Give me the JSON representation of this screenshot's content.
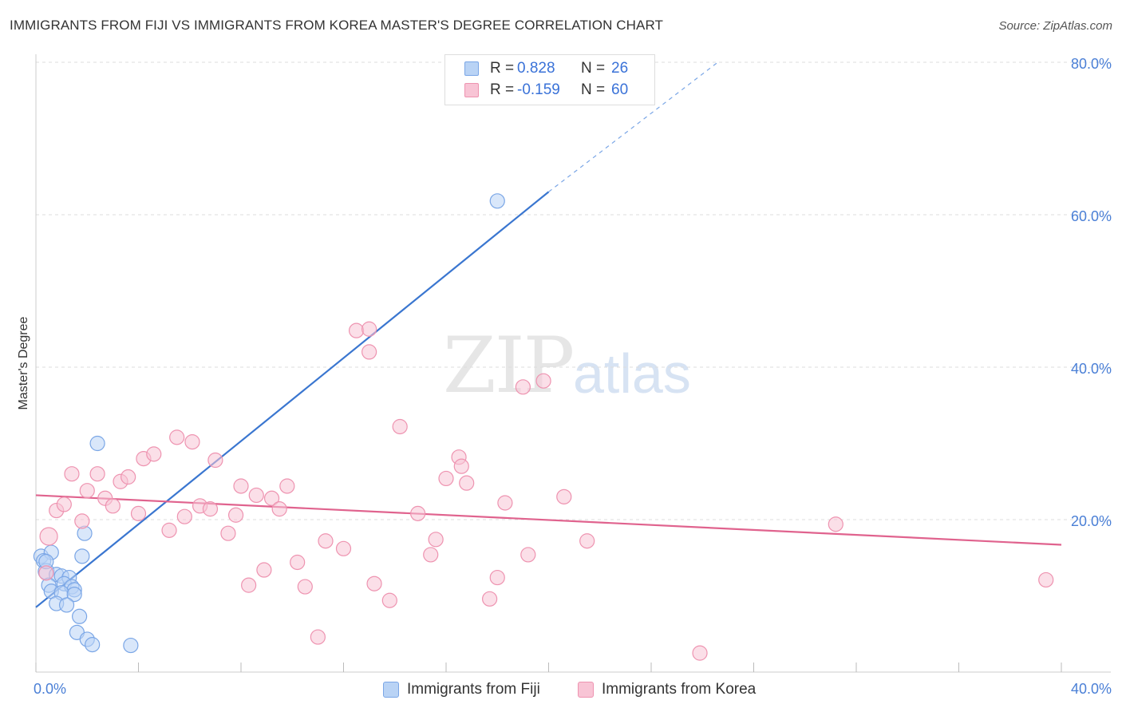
{
  "header": {
    "title": "IMMIGRANTS FROM FIJI VS IMMIGRANTS FROM KOREA MASTER'S DEGREE CORRELATION CHART",
    "source": "Source: ZipAtlas.com"
  },
  "watermark": {
    "zip": "ZIP",
    "atlas": "atlas"
  },
  "legend": {
    "r_label": "R =",
    "n_label": "N =",
    "rows": [
      {
        "r": "0.828",
        "n": "26",
        "fill": "#b9d3f5",
        "stroke": "#7aa6e6"
      },
      {
        "r": "-0.159",
        "n": "60",
        "fill": "#f8c4d5",
        "stroke": "#ee93b0"
      }
    ]
  },
  "chart_data": {
    "type": "scatter",
    "title": "IMMIGRANTS FROM FIJI VS IMMIGRANTS FROM KOREA MASTER'S DEGREE CORRELATION CHART",
    "ylabel": "Master's Degree",
    "xlabel": "",
    "xlim": [
      0,
      40
    ],
    "ylim": [
      0,
      80
    ],
    "x_tick_labels": [
      "0.0%",
      "40.0%"
    ],
    "y_ticks": [
      20,
      40,
      60,
      80
    ],
    "y_tick_labels": [
      "20.0%",
      "40.0%",
      "60.0%",
      "80.0%"
    ],
    "grid": true,
    "legend_position": "top-center",
    "series": [
      {
        "name": "Immigrants from Fiji",
        "color": "#7aa6e6",
        "fill": "#b9d3f5",
        "line_color": "#3a76d0",
        "trend": {
          "x0": 0,
          "y0": 8.5,
          "x1": 20,
          "y1": 63,
          "dash_to_x": 26.6,
          "dash_to_y": 80
        },
        "points": [
          [
            0.2,
            15.2
          ],
          [
            0.6,
            15.7
          ],
          [
            0.3,
            14.6
          ],
          [
            0.4,
            13.2
          ],
          [
            0.8,
            12.8
          ],
          [
            1.0,
            12.6
          ],
          [
            1.3,
            12.4
          ],
          [
            0.5,
            11.4
          ],
          [
            1.1,
            11.6
          ],
          [
            1.4,
            11.2
          ],
          [
            1.5,
            10.8
          ],
          [
            0.6,
            10.6
          ],
          [
            1.0,
            10.4
          ],
          [
            1.5,
            10.2
          ],
          [
            0.8,
            9.0
          ],
          [
            1.2,
            8.8
          ],
          [
            1.7,
            7.3
          ],
          [
            1.6,
            5.2
          ],
          [
            2.0,
            4.3
          ],
          [
            2.2,
            3.6
          ],
          [
            3.7,
            3.5
          ],
          [
            1.8,
            15.2
          ],
          [
            1.9,
            18.2
          ],
          [
            2.4,
            30.0
          ],
          [
            18.0,
            61.8
          ],
          [
            0.4,
            14.5
          ]
        ]
      },
      {
        "name": "Immigrants from Korea",
        "color": "#ee93b0",
        "fill": "#f8c4d5",
        "line_color": "#e0638e",
        "trend": {
          "x0": 0,
          "y0": 23.2,
          "x1": 40,
          "y1": 16.7
        },
        "points": [
          [
            0.5,
            17.8
          ],
          [
            0.4,
            13.0
          ],
          [
            0.8,
            21.2
          ],
          [
            1.1,
            22.0
          ],
          [
            1.4,
            26.0
          ],
          [
            1.8,
            19.8
          ],
          [
            2.0,
            23.8
          ],
          [
            2.4,
            26.0
          ],
          [
            2.7,
            22.8
          ],
          [
            3.0,
            21.8
          ],
          [
            3.3,
            25.0
          ],
          [
            3.6,
            25.6
          ],
          [
            4.0,
            20.8
          ],
          [
            4.2,
            28.0
          ],
          [
            4.6,
            28.6
          ],
          [
            5.2,
            18.6
          ],
          [
            5.5,
            30.8
          ],
          [
            5.8,
            20.4
          ],
          [
            6.1,
            30.2
          ],
          [
            6.4,
            21.8
          ],
          [
            6.8,
            21.4
          ],
          [
            7.0,
            27.8
          ],
          [
            7.5,
            18.2
          ],
          [
            7.8,
            20.6
          ],
          [
            8.0,
            24.4
          ],
          [
            8.3,
            11.4
          ],
          [
            8.6,
            23.2
          ],
          [
            8.9,
            13.4
          ],
          [
            9.2,
            22.8
          ],
          [
            9.5,
            21.4
          ],
          [
            9.8,
            24.4
          ],
          [
            10.2,
            14.4
          ],
          [
            10.5,
            11.2
          ],
          [
            11.0,
            4.6
          ],
          [
            11.3,
            17.2
          ],
          [
            12.0,
            16.2
          ],
          [
            12.5,
            44.8
          ],
          [
            13.0,
            42.0
          ],
          [
            13.2,
            11.6
          ],
          [
            13.8,
            9.4
          ],
          [
            14.2,
            32.2
          ],
          [
            14.9,
            20.8
          ],
          [
            15.4,
            15.4
          ],
          [
            15.6,
            17.4
          ],
          [
            16.0,
            25.4
          ],
          [
            16.5,
            28.2
          ],
          [
            16.6,
            27.0
          ],
          [
            16.8,
            24.8
          ],
          [
            17.7,
            9.6
          ],
          [
            18.0,
            12.4
          ],
          [
            18.3,
            22.2
          ],
          [
            19.0,
            37.4
          ],
          [
            19.2,
            15.4
          ],
          [
            19.8,
            38.2
          ],
          [
            20.6,
            23.0
          ],
          [
            21.5,
            17.2
          ],
          [
            25.9,
            2.5
          ],
          [
            31.2,
            19.4
          ],
          [
            39.4,
            12.1
          ],
          [
            13.0,
            45.0
          ]
        ]
      }
    ]
  }
}
